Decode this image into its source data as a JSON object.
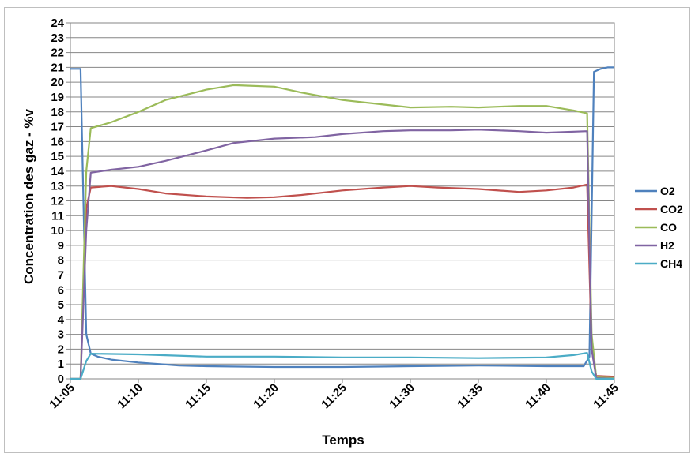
{
  "chart_data": {
    "type": "line",
    "xlabel": "Temps",
    "ylabel": "Concentration des gaz - %v",
    "ylim": [
      0,
      24
    ],
    "yticks": [
      "0",
      "1",
      "2",
      "3",
      "4",
      "5",
      "6",
      "7",
      "8",
      "9",
      "10",
      "11",
      "12",
      "13",
      "14",
      "15",
      "16",
      "17",
      "18",
      "19",
      "20",
      "21",
      "22",
      "23",
      "24"
    ],
    "xlim": [
      "11:05",
      "11:45"
    ],
    "xticks": [
      "11:05",
      "11:10",
      "11:15",
      "11:20",
      "11:25",
      "11:30",
      "11:35",
      "11:40",
      "11:45"
    ],
    "grid": "horizontal",
    "legend_position": "right",
    "series": [
      {
        "name": "O2",
        "color": "#4f81bd",
        "points": [
          [
            "11:05",
            20.9
          ],
          [
            "11:05:45",
            20.9
          ],
          [
            "11:06:10",
            3.0
          ],
          [
            "11:06:30",
            1.7
          ],
          [
            "11:07",
            1.5
          ],
          [
            "11:08",
            1.3
          ],
          [
            "11:10",
            1.1
          ],
          [
            "11:13",
            0.9
          ],
          [
            "11:15",
            0.85
          ],
          [
            "11:20",
            0.8
          ],
          [
            "11:25",
            0.8
          ],
          [
            "11:30",
            0.85
          ],
          [
            "11:35",
            0.9
          ],
          [
            "11:40",
            0.85
          ],
          [
            "11:42:45",
            0.85
          ],
          [
            "11:43:10",
            1.5
          ],
          [
            "11:43:30",
            20.7
          ],
          [
            "11:44",
            20.9
          ],
          [
            "11:44:30",
            21.0
          ],
          [
            "11:45",
            21.0
          ]
        ]
      },
      {
        "name": "CO2",
        "color": "#c0504d",
        "points": [
          [
            "11:05",
            0.0
          ],
          [
            "11:05:45",
            0.0
          ],
          [
            "11:06:10",
            11.5
          ],
          [
            "11:06:30",
            12.9
          ],
          [
            "11:08",
            13.0
          ],
          [
            "11:10",
            12.8
          ],
          [
            "11:12",
            12.5
          ],
          [
            "11:15",
            12.3
          ],
          [
            "11:18",
            12.2
          ],
          [
            "11:20",
            12.25
          ],
          [
            "11:22",
            12.4
          ],
          [
            "11:25",
            12.7
          ],
          [
            "11:28",
            12.9
          ],
          [
            "11:30",
            13.0
          ],
          [
            "11:32",
            12.9
          ],
          [
            "11:35",
            12.8
          ],
          [
            "11:38",
            12.6
          ],
          [
            "11:40",
            12.7
          ],
          [
            "11:42",
            12.9
          ],
          [
            "11:43",
            13.1
          ],
          [
            "11:43:20",
            2.0
          ],
          [
            "11:43:40",
            0.2
          ],
          [
            "11:45",
            0.15
          ]
        ]
      },
      {
        "name": "CO",
        "color": "#9bbb59",
        "points": [
          [
            "11:05",
            0.0
          ],
          [
            "11:05:45",
            0.0
          ],
          [
            "11:06:10",
            14.0
          ],
          [
            "11:06:30",
            16.9
          ],
          [
            "11:08",
            17.3
          ],
          [
            "11:10",
            18.0
          ],
          [
            "11:12",
            18.8
          ],
          [
            "11:15",
            19.5
          ],
          [
            "11:17",
            19.8
          ],
          [
            "11:20",
            19.7
          ],
          [
            "11:22",
            19.3
          ],
          [
            "11:25",
            18.8
          ],
          [
            "11:28",
            18.5
          ],
          [
            "11:30",
            18.3
          ],
          [
            "11:33",
            18.35
          ],
          [
            "11:35",
            18.3
          ],
          [
            "11:38",
            18.4
          ],
          [
            "11:40",
            18.4
          ],
          [
            "11:42",
            18.1
          ],
          [
            "11:43",
            17.9
          ],
          [
            "11:43:20",
            3.0
          ],
          [
            "11:43:40",
            0.1
          ],
          [
            "11:45",
            0.05
          ]
        ]
      },
      {
        "name": "H2",
        "color": "#8064a2",
        "points": [
          [
            "11:05",
            0.0
          ],
          [
            "11:05:45",
            0.0
          ],
          [
            "11:06:10",
            10.0
          ],
          [
            "11:06:30",
            13.9
          ],
          [
            "11:08",
            14.1
          ],
          [
            "11:10",
            14.3
          ],
          [
            "11:12",
            14.7
          ],
          [
            "11:15",
            15.4
          ],
          [
            "11:17",
            15.9
          ],
          [
            "11:20",
            16.2
          ],
          [
            "11:23",
            16.3
          ],
          [
            "11:25",
            16.5
          ],
          [
            "11:28",
            16.7
          ],
          [
            "11:30",
            16.75
          ],
          [
            "11:33",
            16.75
          ],
          [
            "11:35",
            16.8
          ],
          [
            "11:38",
            16.7
          ],
          [
            "11:40",
            16.6
          ],
          [
            "11:43",
            16.7
          ],
          [
            "11:43:20",
            2.0
          ],
          [
            "11:43:40",
            0.05
          ],
          [
            "11:45",
            0.0
          ]
        ]
      },
      {
        "name": "CH4",
        "color": "#4bacc6",
        "points": [
          [
            "11:05",
            0.0
          ],
          [
            "11:05:45",
            0.0
          ],
          [
            "11:06:10",
            1.2
          ],
          [
            "11:06:30",
            1.7
          ],
          [
            "11:10",
            1.65
          ],
          [
            "11:15",
            1.5
          ],
          [
            "11:20",
            1.5
          ],
          [
            "11:25",
            1.45
          ],
          [
            "11:30",
            1.45
          ],
          [
            "11:35",
            1.4
          ],
          [
            "11:40",
            1.45
          ],
          [
            "11:42",
            1.6
          ],
          [
            "11:43",
            1.75
          ],
          [
            "11:43:20",
            0.5
          ],
          [
            "11:43:40",
            0.0
          ],
          [
            "11:45",
            0.0
          ]
        ]
      }
    ]
  }
}
